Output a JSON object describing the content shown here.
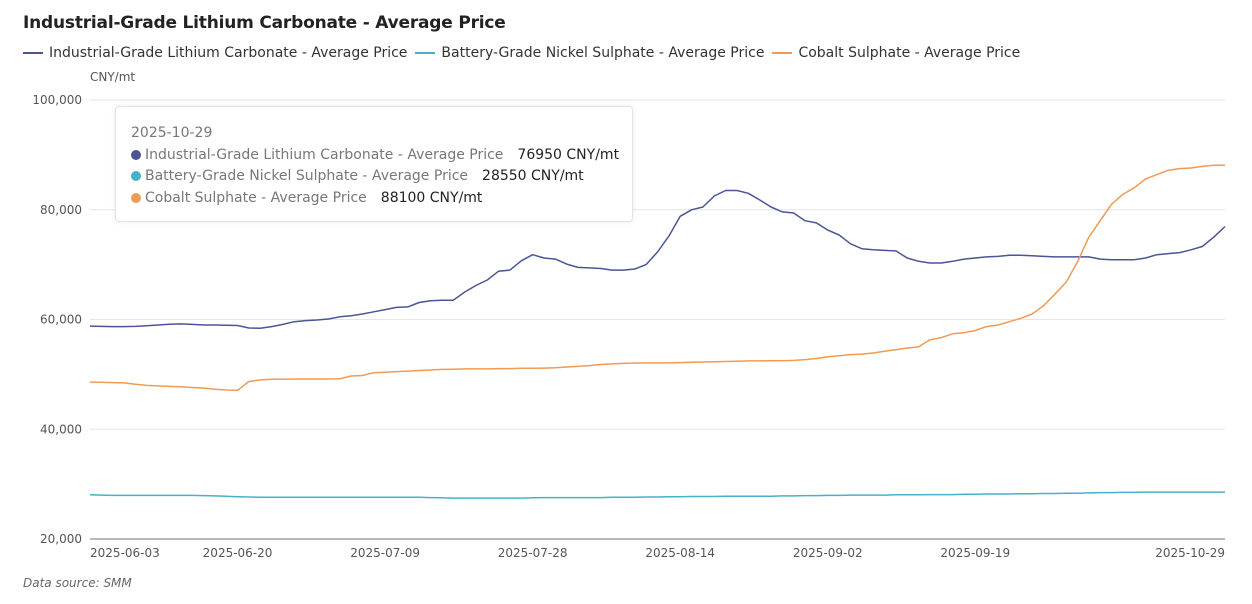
{
  "title": "Industrial-Grade Lithium Carbonate - Average Price",
  "unit_label": "CNY/mt",
  "source": "Data source:  SMM",
  "tooltip": {
    "date": "2025-10-29",
    "rows": [
      {
        "name": "Industrial-Grade Lithium Carbonate - Average Price",
        "value": "76950 CNY/mt",
        "color": "#4a5596"
      },
      {
        "name": "Battery-Grade Nickel Sulphate - Average Price",
        "value": "28550 CNY/mt",
        "color": "#45b2c9"
      },
      {
        "name": "Cobalt Sulphate - Average Price",
        "value": "88100 CNY/mt",
        "color": "#f19a54"
      }
    ]
  },
  "chart_data": {
    "type": "line",
    "title": "Industrial-Grade Lithium Carbonate - Average Price",
    "xlabel": "",
    "ylabel": "CNY/mt",
    "ylim": [
      20000,
      100000
    ],
    "yticks": [
      20000,
      40000,
      60000,
      80000,
      100000
    ],
    "ytick_labels": [
      "20,000",
      "40,000",
      "60,000",
      "80,000",
      "100,000"
    ],
    "xtick_labels": [
      "2025-06-03",
      "2025-06-20",
      "2025-07-09",
      "2025-07-28",
      "2025-08-14",
      "2025-09-02",
      "2025-09-19",
      "2025-10-29"
    ],
    "xtick_index": [
      0,
      13,
      26,
      39,
      52,
      65,
      78,
      100
    ],
    "grid": true,
    "legend": "top-left",
    "point_count": 101,
    "series": [
      {
        "name": "Industrial-Grade Lithium Carbonate - Average Price",
        "color": "#4a5596",
        "values": [
          58800,
          58750,
          58700,
          58700,
          58750,
          58850,
          59000,
          59150,
          59200,
          59100,
          59000,
          59000,
          58950,
          58900,
          58450,
          58400,
          58700,
          59100,
          59600,
          59800,
          59900,
          60100,
          60500,
          60700,
          61000,
          61400,
          61800,
          62200,
          62300,
          63100,
          63400,
          63500,
          63500,
          65000,
          66200,
          67200,
          68800,
          69000,
          70700,
          71800,
          71200,
          71000,
          70100,
          69500,
          69400,
          69300,
          69000,
          69000,
          69200,
          70000,
          72300,
          75200,
          78800,
          80000,
          80500,
          82500,
          83500,
          83500,
          83000,
          81800,
          80500,
          79600,
          79400,
          78000,
          77600,
          76300,
          75400,
          73800,
          72900,
          72700,
          72600,
          72500,
          71200,
          70600,
          70300,
          70300,
          70600,
          71000,
          71200,
          71400,
          71500,
          71700,
          71700,
          71600,
          71500,
          71400,
          71400,
          71400,
          71400,
          71000,
          70900,
          70900,
          70900,
          71200,
          71800,
          72000,
          72200,
          72700,
          73300,
          75000,
          76950
        ]
      },
      {
        "name": "Battery-Grade Nickel Sulphate - Average Price",
        "color": "#45b2c9",
        "values": [
          28050,
          28000,
          27950,
          27950,
          27950,
          27950,
          27950,
          27950,
          27950,
          27950,
          27900,
          27850,
          27800,
          27700,
          27650,
          27600,
          27600,
          27600,
          27600,
          27600,
          27600,
          27600,
          27600,
          27600,
          27600,
          27600,
          27600,
          27600,
          27600,
          27600,
          27550,
          27500,
          27450,
          27450,
          27450,
          27450,
          27450,
          27450,
          27450,
          27500,
          27550,
          27550,
          27550,
          27550,
          27550,
          27550,
          27600,
          27600,
          27600,
          27650,
          27650,
          27700,
          27700,
          27750,
          27750,
          27750,
          27800,
          27800,
          27800,
          27800,
          27800,
          27850,
          27850,
          27900,
          27900,
          27950,
          27950,
          28000,
          28000,
          28000,
          28000,
          28050,
          28050,
          28050,
          28100,
          28100,
          28100,
          28150,
          28150,
          28200,
          28200,
          28200,
          28250,
          28250,
          28300,
          28300,
          28350,
          28350,
          28400,
          28450,
          28450,
          28500,
          28500,
          28550,
          28550,
          28550,
          28550,
          28550,
          28550,
          28550,
          28550
        ]
      },
      {
        "name": "Cobalt Sulphate - Average Price",
        "color": "#f19a54",
        "values": [
          48600,
          48550,
          48500,
          48450,
          48200,
          48000,
          47900,
          47800,
          47750,
          47600,
          47500,
          47300,
          47150,
          47100,
          48700,
          49000,
          49100,
          49100,
          49150,
          49150,
          49150,
          49150,
          49200,
          49700,
          49800,
          50300,
          50400,
          50500,
          50600,
          50700,
          50800,
          50900,
          50950,
          51000,
          51000,
          51000,
          51050,
          51050,
          51100,
          51100,
          51150,
          51200,
          51350,
          51450,
          51600,
          51800,
          51900,
          52000,
          52050,
          52100,
          52100,
          52100,
          52150,
          52200,
          52250,
          52300,
          52350,
          52400,
          52450,
          52450,
          52500,
          52500,
          52550,
          52700,
          52900,
          53200,
          53400,
          53600,
          53700,
          53900,
          54200,
          54500,
          54800,
          55000,
          56300,
          56700,
          57400,
          57600,
          58000,
          58700,
          59000,
          59600,
          60200,
          61000,
          62500,
          64600,
          66800,
          70500,
          75000,
          78000,
          81000,
          82800,
          84000,
          85600,
          86400,
          87200,
          87500,
          87600,
          87900,
          88100,
          88100
        ]
      }
    ]
  }
}
